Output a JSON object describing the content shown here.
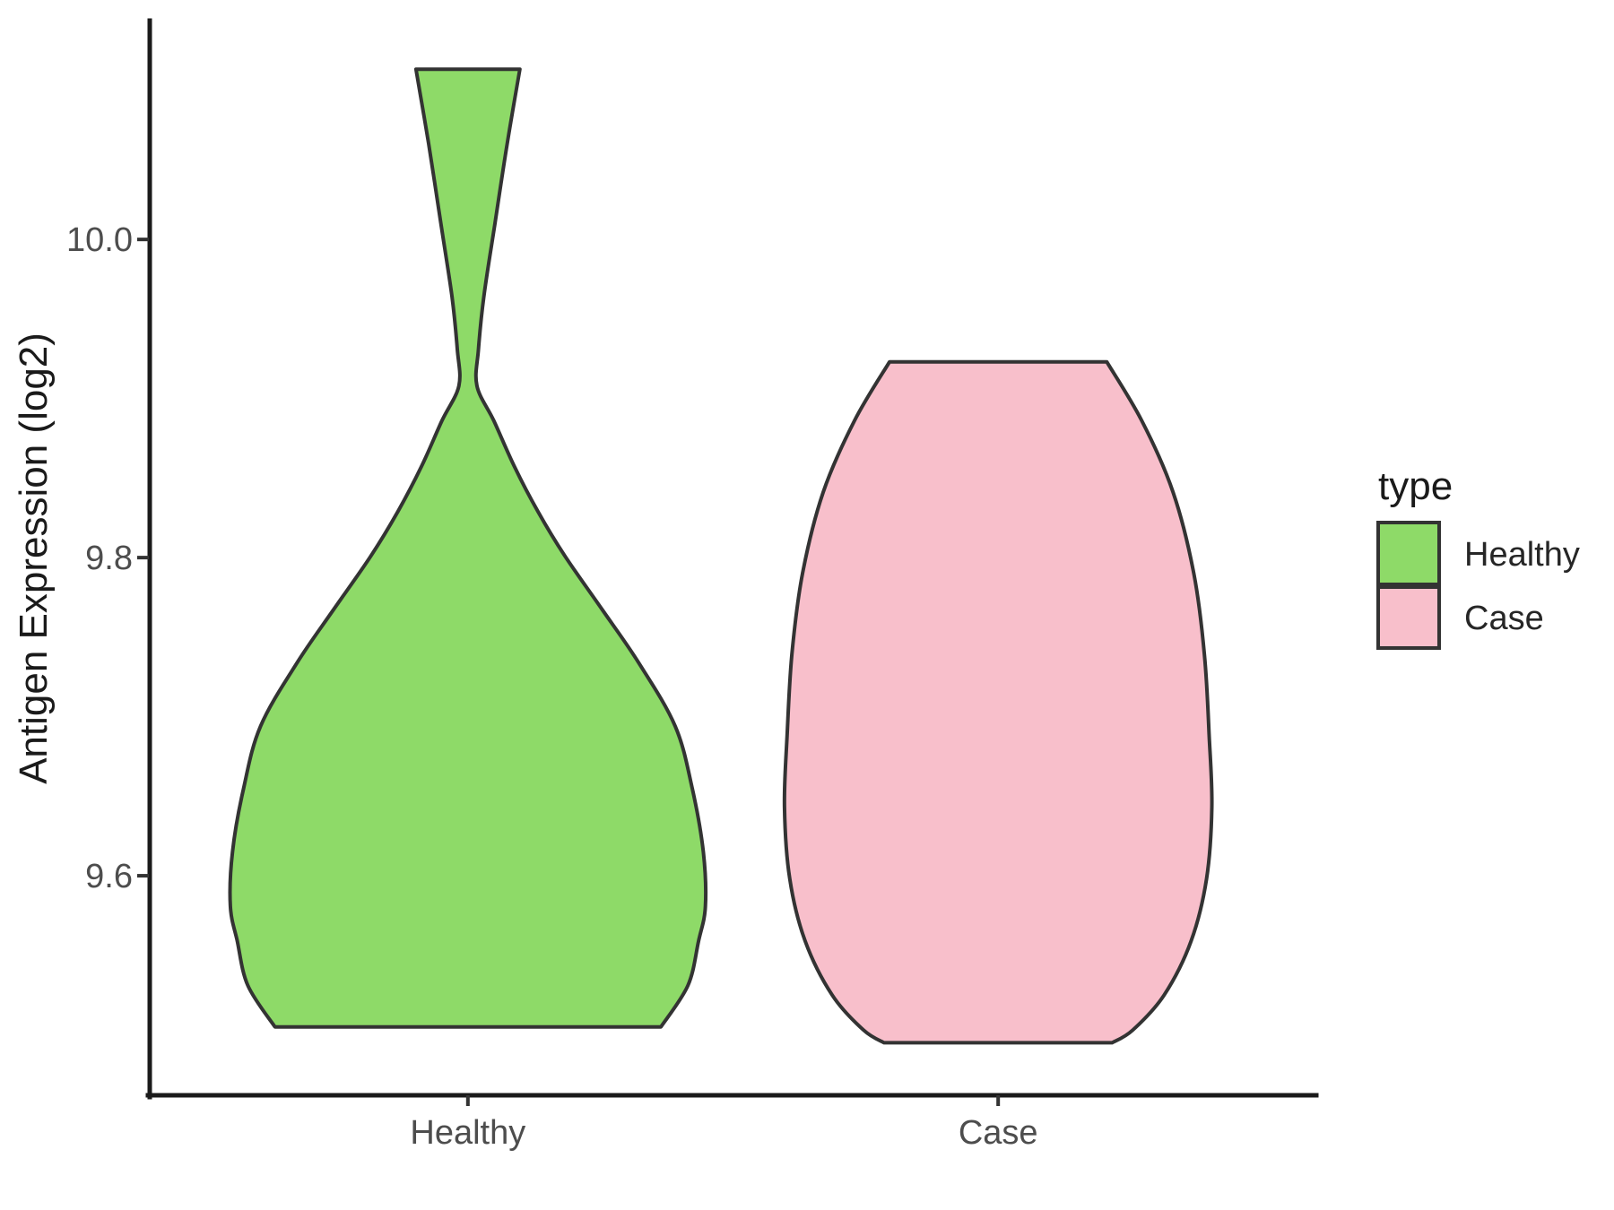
{
  "figure": {
    "y_axis": {
      "title": "Antigen Expression (log2)",
      "ticks": [
        {
          "value": 9.6,
          "label": "9.6"
        },
        {
          "value": 9.8,
          "label": "9.8"
        },
        {
          "value": 10.0,
          "label": "10.0"
        }
      ]
    },
    "x_axis": {
      "categories": [
        "Healthy",
        "Case"
      ]
    },
    "legend": {
      "title": "type",
      "items": [
        {
          "label": "Healthy",
          "color": "#8EDA68"
        },
        {
          "label": "Case",
          "color": "#F8BFCB"
        }
      ]
    }
  },
  "chart_data": {
    "type": "violin",
    "title": "",
    "xlabel": "",
    "ylabel": "Antigen Expression (log2)",
    "categories": [
      "Healthy",
      "Case"
    ],
    "yticks": [
      9.6,
      9.8,
      10.0
    ],
    "ylim": [
      9.462,
      10.137
    ],
    "grid": false,
    "legend_title": "type",
    "legend_position": "right",
    "outline_color": "#333333",
    "outline_width": 4,
    "series": [
      {
        "name": "Healthy",
        "fill": "#8EDA68",
        "data_min": 9.51,
        "data_max": 10.11,
        "profile": [
          [
            10.107,
            0.098
          ],
          [
            10.06,
            0.074
          ],
          [
            10.01,
            0.051
          ],
          [
            9.964,
            0.03
          ],
          [
            9.931,
            0.02
          ],
          [
            9.908,
            0.017
          ],
          [
            9.886,
            0.049
          ],
          [
            9.857,
            0.088
          ],
          [
            9.829,
            0.132
          ],
          [
            9.801,
            0.183
          ],
          [
            9.767,
            0.254
          ],
          [
            9.734,
            0.322
          ],
          [
            9.694,
            0.391
          ],
          [
            9.655,
            0.423
          ],
          [
            9.615,
            0.444
          ],
          [
            9.581,
            0.448
          ],
          [
            9.559,
            0.435
          ],
          [
            9.531,
            0.415
          ],
          [
            9.505,
            0.364
          ]
        ]
      },
      {
        "name": "Case",
        "fill": "#F8BFCB",
        "data_min": 9.49,
        "data_max": 9.92,
        "profile": [
          [
            9.923,
            0.205
          ],
          [
            9.886,
            0.271
          ],
          [
            9.841,
            0.33
          ],
          [
            9.79,
            0.369
          ],
          [
            9.739,
            0.389
          ],
          [
            9.688,
            0.398
          ],
          [
            9.643,
            0.403
          ],
          [
            9.598,
            0.393
          ],
          [
            9.559,
            0.364
          ],
          [
            9.525,
            0.313
          ],
          [
            9.503,
            0.254
          ],
          [
            9.495,
            0.215
          ]
        ]
      }
    ]
  }
}
